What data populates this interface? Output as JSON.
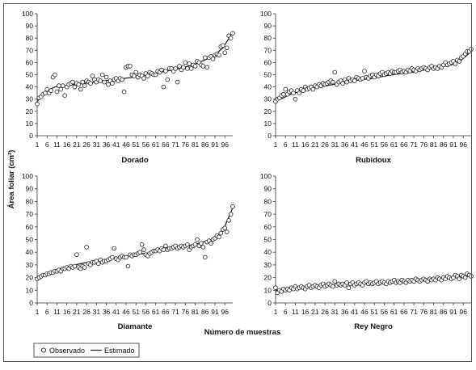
{
  "figure": {
    "y_axis_label": "Área foliar (cm²)",
    "x_axis_label": "Número de muestras",
    "legend": {
      "observed": "Observado",
      "estimated": "Estimado",
      "position": "bottom-left"
    }
  },
  "chart_data": [
    {
      "type": "scatter",
      "title": "Dorado",
      "ylim": [
        0,
        100
      ],
      "yticks": [
        0,
        10,
        20,
        30,
        40,
        50,
        60,
        70,
        80,
        90,
        100
      ],
      "xlim": [
        1,
        100
      ],
      "xticks": [
        1,
        6,
        11,
        16,
        21,
        26,
        31,
        36,
        41,
        46,
        51,
        56,
        61,
        66,
        71,
        76,
        81,
        86,
        91,
        96
      ],
      "grid": false,
      "series": [
        {
          "name": "Observado",
          "x": [
            1,
            2,
            3,
            4,
            5,
            6,
            7,
            8,
            9,
            10,
            11,
            12,
            13,
            14,
            15,
            16,
            17,
            18,
            19,
            20,
            21,
            22,
            23,
            24,
            25,
            26,
            27,
            28,
            29,
            30,
            31,
            32,
            33,
            34,
            35,
            36,
            37,
            38,
            39,
            40,
            41,
            42,
            43,
            44,
            45,
            46,
            47,
            48,
            49,
            50,
            51,
            52,
            53,
            54,
            55,
            56,
            57,
            58,
            59,
            60,
            61,
            62,
            63,
            64,
            65,
            66,
            67,
            68,
            69,
            70,
            71,
            72,
            73,
            74,
            75,
            76,
            77,
            78,
            79,
            80,
            81,
            82,
            83,
            84,
            85,
            86,
            87,
            88,
            89,
            90,
            91,
            92,
            93,
            94,
            95,
            96,
            97,
            98,
            99,
            100
          ],
          "y": [
            26,
            31,
            32,
            34,
            35,
            38,
            35,
            37,
            48,
            50,
            36,
            41,
            38,
            41,
            33,
            40,
            42,
            43,
            44,
            40,
            43,
            42,
            38,
            44,
            41,
            45,
            44,
            43,
            49,
            46,
            44,
            46,
            45,
            50,
            44,
            48,
            42,
            45,
            43,
            46,
            47,
            45,
            47,
            46,
            36,
            56,
            57,
            57,
            50,
            49,
            52,
            48,
            50,
            49,
            47,
            51,
            49,
            52,
            51,
            50,
            50,
            53,
            52,
            54,
            40,
            53,
            46,
            55,
            55,
            53,
            55,
            44,
            57,
            54,
            56,
            60,
            55,
            59,
            55,
            58,
            57,
            61,
            60,
            58,
            57,
            64,
            56,
            64,
            65,
            63,
            66,
            67,
            66,
            73,
            74,
            68,
            72,
            82,
            80,
            84
          ]
        },
        {
          "name": "Estimado",
          "x": [
            1,
            5,
            10,
            20,
            30,
            40,
            50,
            60,
            70,
            80,
            90,
            95,
            100
          ],
          "y": [
            28,
            36,
            40,
            42,
            44,
            46,
            48,
            51,
            54,
            58,
            65,
            72,
            85
          ]
        }
      ]
    },
    {
      "type": "scatter",
      "title": "Rubidoux",
      "ylim": [
        0,
        100
      ],
      "yticks": [
        0,
        10,
        20,
        30,
        40,
        50,
        60,
        70,
        80,
        90,
        100
      ],
      "xlim": [
        1,
        100
      ],
      "xticks": [
        1,
        6,
        11,
        16,
        21,
        26,
        31,
        36,
        41,
        46,
        51,
        56,
        61,
        66,
        71,
        76,
        81,
        86,
        91,
        96
      ],
      "grid": false,
      "series": [
        {
          "name": "Observado",
          "x": [
            1,
            2,
            3,
            4,
            5,
            6,
            7,
            8,
            9,
            10,
            11,
            12,
            13,
            14,
            15,
            16,
            17,
            18,
            19,
            20,
            21,
            22,
            23,
            24,
            25,
            26,
            27,
            28,
            29,
            30,
            31,
            32,
            33,
            34,
            35,
            36,
            37,
            38,
            39,
            40,
            41,
            42,
            43,
            44,
            45,
            46,
            47,
            48,
            49,
            50,
            51,
            52,
            53,
            54,
            55,
            56,
            57,
            58,
            59,
            60,
            61,
            62,
            63,
            64,
            65,
            66,
            67,
            68,
            69,
            70,
            71,
            72,
            73,
            74,
            75,
            76,
            77,
            78,
            79,
            80,
            81,
            82,
            83,
            84,
            85,
            86,
            87,
            88,
            89,
            90,
            91,
            92,
            93,
            94,
            95,
            96,
            97,
            98,
            99,
            100
          ],
          "y": [
            28,
            30,
            31,
            33,
            34,
            38,
            34,
            36,
            37,
            35,
            30,
            37,
            35,
            38,
            37,
            40,
            38,
            39,
            40,
            38,
            41,
            40,
            42,
            41,
            43,
            42,
            43,
            44,
            45,
            44,
            52,
            42,
            44,
            45,
            43,
            46,
            44,
            47,
            45,
            46,
            45,
            48,
            47,
            46,
            47,
            53,
            48,
            47,
            49,
            50,
            48,
            50,
            49,
            51,
            52,
            50,
            51,
            52,
            51,
            53,
            52,
            52,
            53,
            54,
            52,
            53,
            52,
            54,
            53,
            55,
            54,
            53,
            55,
            54,
            55,
            56,
            55,
            54,
            56,
            57,
            55,
            56,
            55,
            57,
            56,
            58,
            60,
            58,
            59,
            60,
            61,
            59,
            62,
            61,
            64,
            65,
            67,
            69,
            69,
            71
          ]
        },
        {
          "name": "Estimado",
          "x": [
            1,
            10,
            20,
            30,
            40,
            50,
            60,
            70,
            80,
            90,
            95,
            100
          ],
          "y": [
            28,
            35,
            39,
            42,
            45,
            47,
            50,
            52,
            55,
            58,
            62,
            69
          ]
        }
      ]
    },
    {
      "type": "scatter",
      "title": "Diamante",
      "ylim": [
        0,
        100
      ],
      "yticks": [
        0,
        10,
        20,
        30,
        40,
        50,
        60,
        70,
        80,
        90,
        100
      ],
      "xlim": [
        1,
        100
      ],
      "xticks": [
        1,
        6,
        11,
        16,
        21,
        26,
        31,
        36,
        41,
        46,
        51,
        56,
        61,
        66,
        71,
        76,
        81,
        86,
        91,
        96
      ],
      "grid": false,
      "series": [
        {
          "name": "Observado",
          "x": [
            1,
            2,
            3,
            4,
            5,
            6,
            7,
            8,
            9,
            10,
            11,
            12,
            13,
            14,
            15,
            16,
            17,
            18,
            19,
            20,
            21,
            22,
            23,
            24,
            25,
            26,
            27,
            28,
            29,
            30,
            31,
            32,
            33,
            34,
            35,
            36,
            37,
            38,
            39,
            40,
            41,
            42,
            43,
            44,
            45,
            46,
            47,
            48,
            49,
            50,
            51,
            52,
            53,
            54,
            55,
            56,
            57,
            58,
            59,
            60,
            61,
            62,
            63,
            64,
            65,
            66,
            67,
            68,
            69,
            70,
            71,
            72,
            73,
            74,
            75,
            76,
            77,
            78,
            79,
            80,
            81,
            82,
            83,
            84,
            85,
            86,
            87,
            88,
            89,
            90,
            91,
            92,
            93,
            94,
            95,
            96,
            97,
            98,
            99,
            100
          ],
          "y": [
            19,
            20,
            21,
            22,
            22,
            23,
            23,
            24,
            24,
            25,
            25,
            26,
            25,
            27,
            27,
            28,
            27,
            29,
            28,
            29,
            38,
            28,
            27,
            29,
            28,
            44,
            31,
            30,
            32,
            32,
            33,
            31,
            34,
            32,
            33,
            33,
            34,
            35,
            36,
            43,
            35,
            34,
            36,
            37,
            36,
            36,
            29,
            38,
            37,
            38,
            38,
            39,
            40,
            46,
            42,
            38,
            37,
            39,
            40,
            41,
            41,
            42,
            41,
            43,
            42,
            45,
            42,
            43,
            43,
            44,
            45,
            43,
            44,
            45,
            44,
            45,
            46,
            42,
            44,
            45,
            46,
            50,
            45,
            47,
            44,
            36,
            48,
            49,
            47,
            50,
            51,
            53,
            52,
            55,
            58,
            59,
            56,
            65,
            70,
            76
          ]
        },
        {
          "name": "Estimado",
          "x": [
            1,
            10,
            20,
            30,
            40,
            50,
            60,
            70,
            80,
            90,
            95,
            100
          ],
          "y": [
            20,
            26,
            30,
            33,
            35,
            38,
            40,
            43,
            46,
            50,
            57,
            75
          ]
        }
      ]
    },
    {
      "type": "scatter",
      "title": "Rey Negro",
      "ylim": [
        0,
        100
      ],
      "yticks": [
        0,
        10,
        20,
        30,
        40,
        50,
        60,
        70,
        80,
        90,
        100
      ],
      "xlim": [
        1,
        100
      ],
      "xticks": [
        1,
        6,
        11,
        16,
        21,
        26,
        31,
        36,
        41,
        46,
        51,
        56,
        61,
        66,
        71,
        76,
        81,
        86,
        91,
        96
      ],
      "grid": false,
      "series": [
        {
          "name": "Observado",
          "x": [
            1,
            2,
            3,
            4,
            5,
            6,
            7,
            8,
            9,
            10,
            11,
            12,
            13,
            14,
            15,
            16,
            17,
            18,
            19,
            20,
            21,
            22,
            23,
            24,
            25,
            26,
            27,
            28,
            29,
            30,
            31,
            32,
            33,
            34,
            35,
            36,
            37,
            38,
            39,
            40,
            41,
            42,
            43,
            44,
            45,
            46,
            47,
            48,
            49,
            50,
            51,
            52,
            53,
            54,
            55,
            56,
            57,
            58,
            59,
            60,
            61,
            62,
            63,
            64,
            65,
            66,
            67,
            68,
            69,
            70,
            71,
            72,
            73,
            74,
            75,
            76,
            77,
            78,
            79,
            80,
            81,
            82,
            83,
            84,
            85,
            86,
            87,
            88,
            89,
            90,
            91,
            92,
            93,
            94,
            95,
            96,
            97,
            98,
            99,
            100
          ],
          "y": [
            12,
            8,
            10,
            9,
            11,
            10,
            11,
            10,
            12,
            11,
            13,
            11,
            12,
            13,
            12,
            11,
            13,
            14,
            12,
            13,
            14,
            13,
            12,
            14,
            15,
            13,
            14,
            15,
            14,
            13,
            17,
            14,
            15,
            14,
            15,
            14,
            16,
            12,
            15,
            16,
            14,
            15,
            16,
            15,
            14,
            16,
            17,
            15,
            16,
            15,
            16,
            17,
            15,
            16,
            17,
            16,
            15,
            17,
            16,
            17,
            18,
            16,
            17,
            16,
            18,
            17,
            16,
            18,
            17,
            18,
            17,
            19,
            18,
            17,
            18,
            19,
            18,
            17,
            19,
            18,
            19,
            18,
            20,
            19,
            18,
            20,
            19,
            21,
            20,
            19,
            20,
            22,
            21,
            19,
            22,
            21,
            20,
            23,
            22,
            21
          ]
        },
        {
          "name": "Estimado",
          "x": [
            1,
            20,
            40,
            60,
            80,
            100
          ],
          "y": [
            10,
            13,
            15,
            16,
            18,
            21
          ]
        }
      ]
    }
  ]
}
